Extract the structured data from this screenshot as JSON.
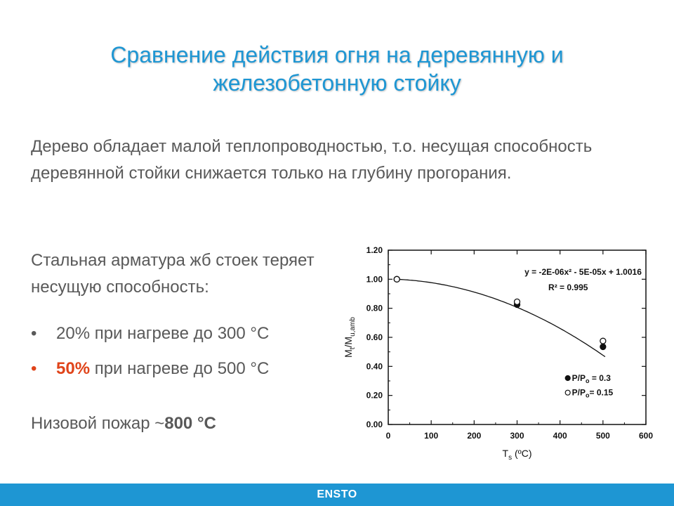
{
  "title": "Сравнение действия огня на деревянную и железобетонную стойку",
  "intro": "Дерево обладает малой теплопроводностью, т.о. несущая способность деревянной стойки снижается только на глубину прогорания.",
  "steel_lead": "Стальная арматура жб стоек теряет несущую способность:",
  "bullets": [
    {
      "marker": "•",
      "highlight": "",
      "text": "20% при нагреве до 300 °С"
    },
    {
      "marker": "•",
      "highlight": "50%",
      "text": " при нагреве до 500 °С"
    }
  ],
  "ground_fire": {
    "prefix": "Низовой пожар ~",
    "value": "800 °С"
  },
  "footer": {
    "logo": "ENSTO"
  },
  "colors": {
    "accent": "#1e96d3",
    "highlight": "#e0441a",
    "text": "#595959"
  },
  "chart_data": {
    "type": "scatter",
    "xlabel": "Tₐ (ºC)",
    "xlabel_main": "T",
    "xlabel_sub": "s",
    "xlabel_unit": " (ºC)",
    "ylabel_main": "M",
    "ylabel_sub1": "t",
    "ylabel_mid": "/M",
    "ylabel_sub2": "u,amb",
    "xlim": [
      0,
      600
    ],
    "ylim": [
      0,
      1.2
    ],
    "x_ticks": [
      "0",
      "100",
      "200",
      "300",
      "400",
      "500",
      "600"
    ],
    "y_ticks": [
      "0.00",
      "0.20",
      "0.40",
      "0.60",
      "0.80",
      "1.00",
      "1.20"
    ],
    "equation": "y = -2E-06x² - 5E-05x + 1.0016",
    "r_squared": "R² = 0.995",
    "series": [
      {
        "name": "P/P₀ = 0.3",
        "name_main": "P/P",
        "name_sub": "o",
        "name_tail": " = 0.3",
        "marker": "filled",
        "x": [
          20,
          300,
          500
        ],
        "y": [
          1.0,
          0.825,
          0.535
        ]
      },
      {
        "name": "P/P₀ = 0.15",
        "name_main": "P/P",
        "name_sub": "o",
        "name_tail": "= 0.15",
        "marker": "open",
        "x": [
          20,
          300,
          500
        ],
        "y": [
          1.0,
          0.845,
          0.575
        ]
      }
    ],
    "fit": {
      "a": -2e-06,
      "b": -5e-05,
      "c": 1.0016,
      "x_range": [
        20,
        505
      ]
    },
    "grid": false
  }
}
